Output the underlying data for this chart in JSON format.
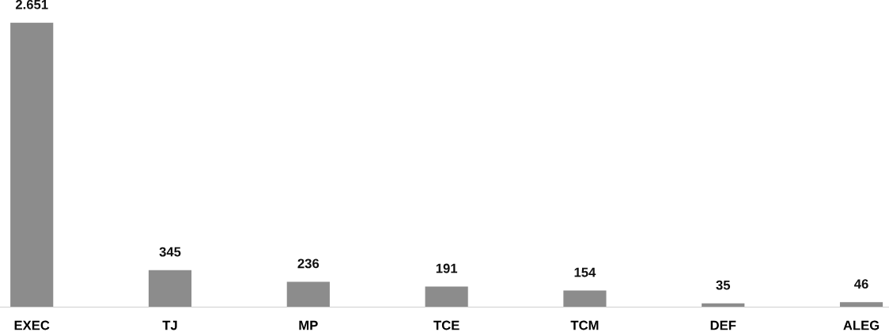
{
  "chart_data": {
    "type": "bar",
    "categories": [
      "EXEC",
      "TJ",
      "MP",
      "TCE",
      "TCM",
      "DEF",
      "ALEG"
    ],
    "values": [
      2651,
      345,
      236,
      191,
      154,
      35,
      46
    ],
    "value_labels": [
      "2.651",
      "345",
      "236",
      "191",
      "154",
      "35",
      "46"
    ],
    "color": "#8c8c8c",
    "grid": false,
    "legend": false
  }
}
